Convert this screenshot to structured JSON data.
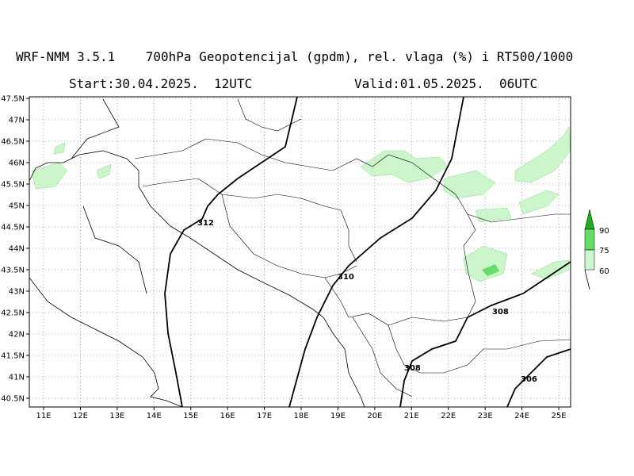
{
  "header": {
    "title": "WRF-NMM 3.5.1    700hPa Geopotencijal (gpdm), rel. vlaga (%) i RT500/1000",
    "start": "Start:30.04.2025.  12UTC",
    "valid": "Valid:01.05.2025.  06UTC"
  },
  "map": {
    "lat_labels": [
      "47.5N",
      "47N",
      "46.5N",
      "46N",
      "45.5N",
      "45N",
      "44.5N",
      "44N",
      "43.5N",
      "43N",
      "42.5N",
      "42N",
      "41.5N",
      "41N",
      "40.5N"
    ],
    "lon_labels": [
      "11E",
      "12E",
      "13E",
      "14E",
      "15E",
      "16E",
      "17E",
      "18E",
      "19E",
      "20E",
      "21E",
      "22E",
      "23E",
      "24E",
      "25E"
    ],
    "contour_labels": [
      "312",
      "310",
      "308",
      "308",
      "306"
    ]
  },
  "legend": {
    "labels": [
      "90",
      "75",
      "60"
    ]
  }
}
